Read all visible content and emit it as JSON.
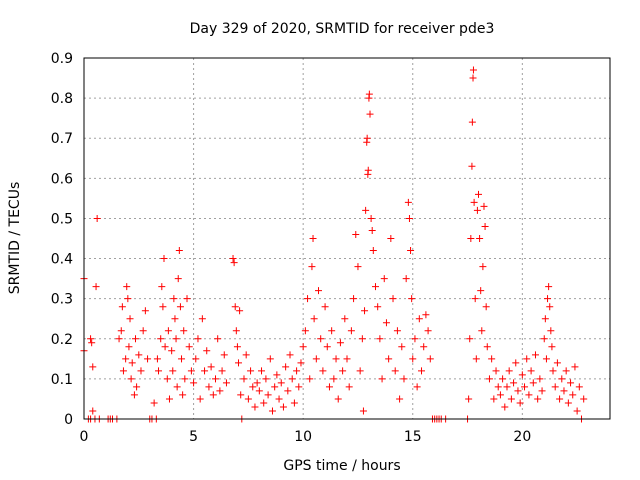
{
  "chart_data": {
    "type": "scatter",
    "title": "Day 329 of 2020, SRMTID for receiver pde3",
    "xlabel": "GPS time / hours",
    "ylabel": "SRMTID / TECUs",
    "xlim": [
      0,
      24
    ],
    "ylim": [
      0,
      0.9
    ],
    "x_ticks": [
      0,
      5,
      10,
      15,
      20
    ],
    "x_tick_labels": [
      "0",
      "5",
      "10",
      "15",
      "20"
    ],
    "y_ticks": [
      0,
      0.1,
      0.2,
      0.3,
      0.4,
      0.5,
      0.6,
      0.7,
      0.8,
      0.9
    ],
    "y_tick_labels": [
      "0",
      "0.1",
      "0.2",
      "0.3",
      "0.4",
      "0.5",
      "0.6",
      "0.7",
      "0.8",
      "0.9"
    ],
    "grid": true,
    "marker": "+",
    "color": "#ff0000",
    "series": [
      {
        "name": "SRMTID",
        "points": [
          [
            0.0,
            0.35
          ],
          [
            0.0,
            0.17
          ],
          [
            0.2,
            0.0
          ],
          [
            0.3,
            0.0
          ],
          [
            0.3,
            0.2
          ],
          [
            0.35,
            0.19
          ],
          [
            0.4,
            0.13
          ],
          [
            0.4,
            0.02
          ],
          [
            0.5,
            0.0
          ],
          [
            0.55,
            0.33
          ],
          [
            0.6,
            0.5
          ],
          [
            0.7,
            0.0
          ],
          [
            1.1,
            0.0
          ],
          [
            1.2,
            0.0
          ],
          [
            1.3,
            0.0
          ],
          [
            1.5,
            0.0
          ],
          [
            1.6,
            0.2
          ],
          [
            1.7,
            0.22
          ],
          [
            1.75,
            0.28
          ],
          [
            1.8,
            0.12
          ],
          [
            1.9,
            0.15
          ],
          [
            1.95,
            0.33
          ],
          [
            2.0,
            0.3
          ],
          [
            2.05,
            0.18
          ],
          [
            2.1,
            0.25
          ],
          [
            2.15,
            0.1
          ],
          [
            2.2,
            0.14
          ],
          [
            2.3,
            0.06
          ],
          [
            2.35,
            0.2
          ],
          [
            2.4,
            0.08
          ],
          [
            2.5,
            0.16
          ],
          [
            2.6,
            0.12
          ],
          [
            2.7,
            0.22
          ],
          [
            2.8,
            0.27
          ],
          [
            2.9,
            0.15
          ],
          [
            3.0,
            0.0
          ],
          [
            3.1,
            0.0
          ],
          [
            3.2,
            0.04
          ],
          [
            3.3,
            0.0
          ],
          [
            3.35,
            0.15
          ],
          [
            3.4,
            0.12
          ],
          [
            3.5,
            0.2
          ],
          [
            3.55,
            0.33
          ],
          [
            3.6,
            0.28
          ],
          [
            3.65,
            0.4
          ],
          [
            3.7,
            0.18
          ],
          [
            3.8,
            0.1
          ],
          [
            3.85,
            0.22
          ],
          [
            3.9,
            0.05
          ],
          [
            4.0,
            0.17
          ],
          [
            4.05,
            0.12
          ],
          [
            4.1,
            0.3
          ],
          [
            4.15,
            0.25
          ],
          [
            4.2,
            0.2
          ],
          [
            4.25,
            0.08
          ],
          [
            4.3,
            0.35
          ],
          [
            4.35,
            0.42
          ],
          [
            4.4,
            0.28
          ],
          [
            4.45,
            0.15
          ],
          [
            4.5,
            0.06
          ],
          [
            4.55,
            0.22
          ],
          [
            4.6,
            0.1
          ],
          [
            4.7,
            0.3
          ],
          [
            4.8,
            0.18
          ],
          [
            4.9,
            0.12
          ],
          [
            5.0,
            0.09
          ],
          [
            5.1,
            0.15
          ],
          [
            5.2,
            0.2
          ],
          [
            5.3,
            0.05
          ],
          [
            5.4,
            0.25
          ],
          [
            5.5,
            0.12
          ],
          [
            5.6,
            0.17
          ],
          [
            5.7,
            0.08
          ],
          [
            5.8,
            0.13
          ],
          [
            5.9,
            0.06
          ],
          [
            6.0,
            0.1
          ],
          [
            6.1,
            0.2
          ],
          [
            6.2,
            0.07
          ],
          [
            6.3,
            0.12
          ],
          [
            6.4,
            0.16
          ],
          [
            6.5,
            0.09
          ],
          [
            6.8,
            0.4
          ],
          [
            6.85,
            0.39
          ],
          [
            6.9,
            0.28
          ],
          [
            6.95,
            0.22
          ],
          [
            7.0,
            0.18
          ],
          [
            7.05,
            0.14
          ],
          [
            7.1,
            0.27
          ],
          [
            7.15,
            0.06
          ],
          [
            7.2,
            0.0
          ],
          [
            7.3,
            0.1
          ],
          [
            7.4,
            0.16
          ],
          [
            7.5,
            0.05
          ],
          [
            7.6,
            0.12
          ],
          [
            7.7,
            0.08
          ],
          [
            7.8,
            0.03
          ],
          [
            7.9,
            0.09
          ],
          [
            8.0,
            0.07
          ],
          [
            8.1,
            0.12
          ],
          [
            8.2,
            0.04
          ],
          [
            8.3,
            0.1
          ],
          [
            8.4,
            0.06
          ],
          [
            8.5,
            0.15
          ],
          [
            8.6,
            0.02
          ],
          [
            8.7,
            0.08
          ],
          [
            8.8,
            0.11
          ],
          [
            8.9,
            0.05
          ],
          [
            9.0,
            0.09
          ],
          [
            9.1,
            0.03
          ],
          [
            9.2,
            0.13
          ],
          [
            9.3,
            0.07
          ],
          [
            9.4,
            0.16
          ],
          [
            9.5,
            0.1
          ],
          [
            9.6,
            0.04
          ],
          [
            9.7,
            0.12
          ],
          [
            9.8,
            0.08
          ],
          [
            9.9,
            0.14
          ],
          [
            10.0,
            0.18
          ],
          [
            10.1,
            0.22
          ],
          [
            10.2,
            0.3
          ],
          [
            10.3,
            0.1
          ],
          [
            10.4,
            0.38
          ],
          [
            10.45,
            0.45
          ],
          [
            10.5,
            0.25
          ],
          [
            10.6,
            0.15
          ],
          [
            10.7,
            0.32
          ],
          [
            10.8,
            0.2
          ],
          [
            10.9,
            0.12
          ],
          [
            11.0,
            0.28
          ],
          [
            11.1,
            0.18
          ],
          [
            11.2,
            0.08
          ],
          [
            11.3,
            0.22
          ],
          [
            11.4,
            0.1
          ],
          [
            11.5,
            0.15
          ],
          [
            11.6,
            0.05
          ],
          [
            11.7,
            0.19
          ],
          [
            11.8,
            0.12
          ],
          [
            11.9,
            0.25
          ],
          [
            12.0,
            0.15
          ],
          [
            12.1,
            0.08
          ],
          [
            12.2,
            0.22
          ],
          [
            12.3,
            0.3
          ],
          [
            12.4,
            0.46
          ],
          [
            12.5,
            0.38
          ],
          [
            12.6,
            0.12
          ],
          [
            12.7,
            0.2
          ],
          [
            12.75,
            0.02
          ],
          [
            12.8,
            0.27
          ],
          [
            12.85,
            0.52
          ],
          [
            12.9,
            0.69
          ],
          [
            12.92,
            0.7
          ],
          [
            12.95,
            0.61
          ],
          [
            12.97,
            0.62
          ],
          [
            13.0,
            0.8
          ],
          [
            13.02,
            0.81
          ],
          [
            13.05,
            0.76
          ],
          [
            13.1,
            0.5
          ],
          [
            13.15,
            0.47
          ],
          [
            13.2,
            0.42
          ],
          [
            13.3,
            0.33
          ],
          [
            13.4,
            0.28
          ],
          [
            13.5,
            0.2
          ],
          [
            13.6,
            0.1
          ],
          [
            13.7,
            0.35
          ],
          [
            13.8,
            0.24
          ],
          [
            13.9,
            0.15
          ],
          [
            14.0,
            0.45
          ],
          [
            14.1,
            0.3
          ],
          [
            14.2,
            0.12
          ],
          [
            14.3,
            0.22
          ],
          [
            14.4,
            0.05
          ],
          [
            14.5,
            0.18
          ],
          [
            14.6,
            0.1
          ],
          [
            14.7,
            0.35
          ],
          [
            14.8,
            0.54
          ],
          [
            14.85,
            0.5
          ],
          [
            14.9,
            0.42
          ],
          [
            14.95,
            0.3
          ],
          [
            15.0,
            0.15
          ],
          [
            15.1,
            0.2
          ],
          [
            15.2,
            0.08
          ],
          [
            15.3,
            0.25
          ],
          [
            15.4,
            0.12
          ],
          [
            15.5,
            0.18
          ],
          [
            15.6,
            0.26
          ],
          [
            15.7,
            0.22
          ],
          [
            15.8,
            0.15
          ],
          [
            15.9,
            0.0
          ],
          [
            16.0,
            0.0
          ],
          [
            16.1,
            0.0
          ],
          [
            16.2,
            0.0
          ],
          [
            16.3,
            0.0
          ],
          [
            16.5,
            0.0
          ],
          [
            17.5,
            0.0
          ],
          [
            17.55,
            0.05
          ],
          [
            17.6,
            0.2
          ],
          [
            17.65,
            0.45
          ],
          [
            17.7,
            0.63
          ],
          [
            17.72,
            0.74
          ],
          [
            17.75,
            0.85
          ],
          [
            17.77,
            0.87
          ],
          [
            17.8,
            0.54
          ],
          [
            17.85,
            0.3
          ],
          [
            17.9,
            0.15
          ],
          [
            17.95,
            0.52
          ],
          [
            18.0,
            0.56
          ],
          [
            18.05,
            0.45
          ],
          [
            18.1,
            0.32
          ],
          [
            18.15,
            0.22
          ],
          [
            18.2,
            0.38
          ],
          [
            18.25,
            0.53
          ],
          [
            18.3,
            0.48
          ],
          [
            18.35,
            0.28
          ],
          [
            18.4,
            0.18
          ],
          [
            18.5,
            0.1
          ],
          [
            18.6,
            0.15
          ],
          [
            18.7,
            0.05
          ],
          [
            18.8,
            0.12
          ],
          [
            18.9,
            0.08
          ],
          [
            19.0,
            0.06
          ],
          [
            19.1,
            0.1
          ],
          [
            19.2,
            0.03
          ],
          [
            19.3,
            0.08
          ],
          [
            19.4,
            0.12
          ],
          [
            19.5,
            0.05
          ],
          [
            19.6,
            0.09
          ],
          [
            19.7,
            0.14
          ],
          [
            19.8,
            0.07
          ],
          [
            19.9,
            0.04
          ],
          [
            20.0,
            0.11
          ],
          [
            20.1,
            0.08
          ],
          [
            20.2,
            0.15
          ],
          [
            20.3,
            0.06
          ],
          [
            20.4,
            0.12
          ],
          [
            20.5,
            0.09
          ],
          [
            20.6,
            0.16
          ],
          [
            20.7,
            0.05
          ],
          [
            20.8,
            0.1
          ],
          [
            20.9,
            0.07
          ],
          [
            21.0,
            0.2
          ],
          [
            21.05,
            0.25
          ],
          [
            21.1,
            0.15
          ],
          [
            21.15,
            0.3
          ],
          [
            21.2,
            0.33
          ],
          [
            21.25,
            0.28
          ],
          [
            21.3,
            0.22
          ],
          [
            21.35,
            0.18
          ],
          [
            21.4,
            0.12
          ],
          [
            21.5,
            0.08
          ],
          [
            21.6,
            0.14
          ],
          [
            21.7,
            0.05
          ],
          [
            21.8,
            0.1
          ],
          [
            21.9,
            0.07
          ],
          [
            22.0,
            0.12
          ],
          [
            22.1,
            0.04
          ],
          [
            22.2,
            0.09
          ],
          [
            22.3,
            0.06
          ],
          [
            22.4,
            0.13
          ],
          [
            22.5,
            0.02
          ],
          [
            22.6,
            0.08
          ],
          [
            22.7,
            0.0
          ],
          [
            22.8,
            0.05
          ]
        ]
      }
    ]
  }
}
